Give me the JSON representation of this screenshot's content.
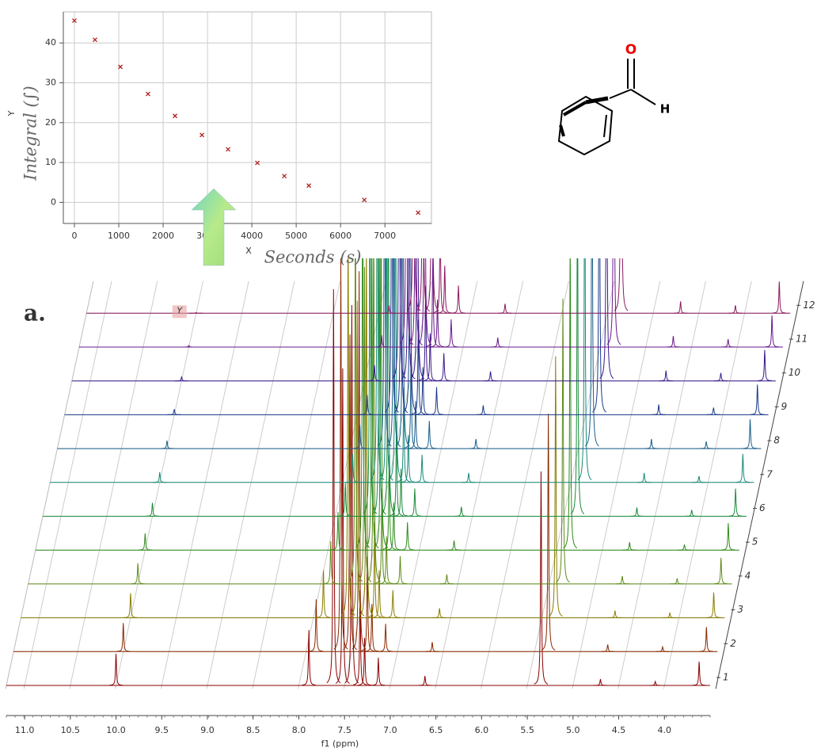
{
  "panel_label": "a.",
  "molecule": {
    "atoms": [
      "O",
      "H"
    ]
  },
  "chart_data": [
    {
      "type": "scatter",
      "xlabel": "Seconds (s)",
      "ylabel": "Integral (∫)",
      "x_axis_letter": "X",
      "y_axis_letter": "Y",
      "x": [
        0,
        464,
        1036,
        1660,
        2268,
        2875,
        3464,
        4125,
        4732,
        5286,
        6536,
        7750
      ],
      "values": [
        45.6,
        40.8,
        34,
        27.2,
        21.7,
        16.9,
        13.3,
        9.9,
        6.6,
        4.2,
        0.6,
        -2.6
      ],
      "color": "#b22222",
      "xlim": [
        -250,
        8050
      ],
      "ylim": [
        -5.3,
        47.8
      ],
      "xticks": [
        0,
        1000,
        2000,
        3000,
        4000,
        5000,
        6000,
        7000
      ],
      "yticks": [
        0,
        10,
        20,
        30,
        40
      ],
      "grid": true
    },
    {
      "type": "stacked-spectra",
      "xlabel": "f1 (ppm)",
      "annotation": "Y",
      "peaks_ppm": [
        10.0,
        7.89,
        7.62,
        7.52,
        7.42,
        7.33,
        7.28,
        7.13,
        6.62,
        5.35,
        4.7,
        4.1,
        3.62
      ],
      "series": [
        {
          "name": "1",
          "color": "#8b0000",
          "values": [
            40,
            70,
            500,
            400,
            480,
            120,
            60,
            35,
            12,
            270,
            8,
            5,
            30
          ]
        },
        {
          "name": "2",
          "color": "#8b2a00",
          "values": [
            36,
            66,
            500,
            400,
            480,
            120,
            60,
            35,
            12,
            300,
            9,
            6,
            31
          ]
        },
        {
          "name": "3",
          "color": "#8b7d00",
          "values": [
            31,
            60,
            500,
            400,
            480,
            120,
            60,
            35,
            12,
            330,
            9,
            6,
            32
          ]
        },
        {
          "name": "4",
          "color": "#5f8b1a",
          "values": [
            26,
            54,
            500,
            400,
            480,
            120,
            60,
            35,
            12,
            360,
            10,
            7,
            33
          ]
        },
        {
          "name": "5",
          "color": "#2f8b1a",
          "values": [
            21,
            48,
            500,
            400,
            480,
            120,
            60,
            35,
            12,
            400,
            10,
            7,
            34
          ]
        },
        {
          "name": "6",
          "color": "#1a8b3a",
          "values": [
            17,
            42,
            500,
            400,
            480,
            120,
            60,
            35,
            12,
            450,
            11,
            8,
            35
          ]
        },
        {
          "name": "7",
          "color": "#1a8b7a",
          "values": [
            13,
            36,
            500,
            400,
            480,
            120,
            60,
            35,
            12,
            500,
            12,
            8,
            36
          ]
        },
        {
          "name": "8",
          "color": "#1a5f8b",
          "values": [
            10,
            30,
            500,
            400,
            480,
            120,
            60,
            35,
            12,
            500,
            12,
            9,
            37
          ]
        },
        {
          "name": "9",
          "color": "#1a3a8b",
          "values": [
            7,
            25,
            500,
            400,
            480,
            120,
            60,
            35,
            12,
            500,
            13,
            9,
            38
          ]
        },
        {
          "name": "10",
          "color": "#3a1a8b",
          "values": [
            5,
            20,
            500,
            400,
            480,
            120,
            60,
            35,
            12,
            500,
            13,
            10,
            39
          ]
        },
        {
          "name": "11",
          "color": "#6a1a8b",
          "values": [
            2,
            15,
            500,
            400,
            480,
            120,
            60,
            35,
            12,
            500,
            14,
            10,
            40
          ]
        },
        {
          "name": "12",
          "color": "#8b1a5f",
          "values": [
            1,
            10,
            500,
            400,
            480,
            120,
            60,
            35,
            12,
            500,
            15,
            10,
            40
          ]
        }
      ],
      "xlim": [
        11.2,
        3.5
      ],
      "xticks": [
        {
          "value": 11,
          "label": "11.0"
        },
        10.5,
        {
          "value": 10,
          "label": "10.0"
        },
        9.5,
        {
          "value": 9,
          "label": "9.0"
        },
        8.5,
        {
          "value": 8,
          "label": "8.0"
        },
        7.5,
        {
          "value": 7,
          "label": "7.0"
        },
        6.5,
        {
          "value": 6,
          "label": "6.0"
        },
        5.5,
        {
          "value": 5,
          "label": "5.0"
        },
        4.5,
        {
          "value": 4,
          "label": "4.0"
        }
      ],
      "grid": true
    }
  ]
}
